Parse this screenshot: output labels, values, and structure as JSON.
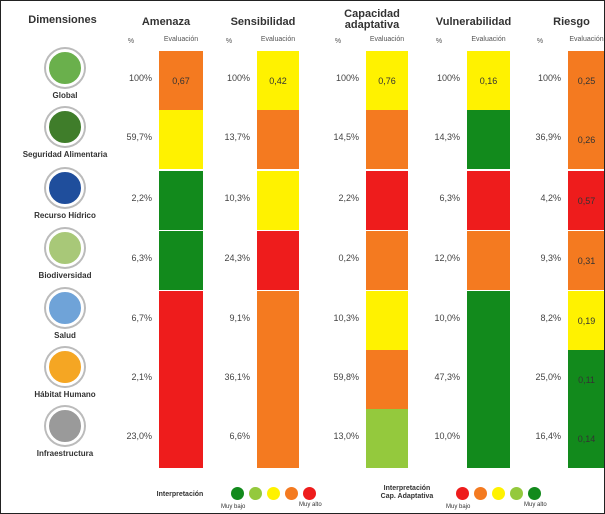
{
  "table": {
    "corner": "Dimensiones",
    "columns": [
      {
        "title": "Amenaza",
        "pct_label": "%",
        "eval_label": "Evaluación"
      },
      {
        "title": "Sensibilidad",
        "pct_label": "%",
        "eval_label": "Evaluación"
      },
      {
        "title": "Capacidad adaptativa",
        "pct_label": "%",
        "eval_label": "Evaluación"
      },
      {
        "title": "Vulnerabilidad",
        "pct_label": "%",
        "eval_label": "Evaluación"
      },
      {
        "title": "Riesgo",
        "pct_label": "%",
        "eval_label": "Evaluación"
      }
    ],
    "rows": [
      {
        "name": "Global",
        "icon_color": "#6ab04c",
        "cells": [
          {
            "pct": "100%",
            "color": "#f47a20",
            "eval": "0,67"
          },
          {
            "pct": "100%",
            "color": "#fff200",
            "eval": "0,42"
          },
          {
            "pct": "100%",
            "color": "#fff200",
            "eval": "0,76"
          },
          {
            "pct": "100%",
            "color": "#fff200",
            "eval": "0,16"
          },
          {
            "pct": "100%",
            "color": "#f47a20",
            "eval": "0,25"
          }
        ]
      },
      {
        "name": "Seguridad Alimentaria",
        "icon_color": "#3f7d2a",
        "cells": [
          {
            "pct": "59,7%",
            "color": "#fff200"
          },
          {
            "pct": "13,7%",
            "color": "#f47a20"
          },
          {
            "pct": "14,5%",
            "color": "#f47a20"
          },
          {
            "pct": "14,3%",
            "color": "#128a1c"
          },
          {
            "pct": "36,9%",
            "color": "#f47a20",
            "eval": "0,26"
          }
        ]
      },
      {
        "name": "Recurso Hídrico",
        "icon_color": "#1f4e9c",
        "cells": [
          {
            "pct": "2,2%",
            "color": "#128a1c"
          },
          {
            "pct": "10,3%",
            "color": "#fff200"
          },
          {
            "pct": "2,2%",
            "color": "#ee1c1c"
          },
          {
            "pct": "6,3%",
            "color": "#ee1c1c"
          },
          {
            "pct": "4,2%",
            "color": "#ee1c1c",
            "eval": "0,57"
          }
        ]
      },
      {
        "name": "Biodiversidad",
        "icon_color": "#a8c878",
        "cells": [
          {
            "pct": "6,3%",
            "color": "#128a1c"
          },
          {
            "pct": "24,3%",
            "color": "#ee1c1c"
          },
          {
            "pct": "0,2%",
            "color": "#f47a20"
          },
          {
            "pct": "12,0%",
            "color": "#f47a20"
          },
          {
            "pct": "9,3%",
            "color": "#f47a20",
            "eval": "0,31"
          }
        ]
      },
      {
        "name": "Salud",
        "icon_color": "#6fa3d8",
        "cells": [
          {
            "pct": "6,7%",
            "color": "#ee1c1c"
          },
          {
            "pct": "9,1%",
            "color": "#f47a20"
          },
          {
            "pct": "10,3%",
            "color": "#fff200"
          },
          {
            "pct": "10,0%",
            "color": "#128a1c"
          },
          {
            "pct": "8,2%",
            "color": "#fff200",
            "eval": "0,19"
          }
        ]
      },
      {
        "name": "Hábitat Humano",
        "icon_color": "#f5a623",
        "cells": [
          {
            "pct": "2,1%",
            "color": "#ee1c1c"
          },
          {
            "pct": "36,1%",
            "color": "#f47a20"
          },
          {
            "pct": "59,8%",
            "color": "#f47a20"
          },
          {
            "pct": "47,3%",
            "color": "#128a1c"
          },
          {
            "pct": "25,0%",
            "color": "#128a1c",
            "eval": "0,11"
          }
        ]
      },
      {
        "name": "Infraestructura",
        "icon_color": "#9a9a9a",
        "cells": [
          {
            "pct": "23,0%",
            "color": "#ee1c1c"
          },
          {
            "pct": "6,6%",
            "color": "#f47a20"
          },
          {
            "pct": "13,0%",
            "color": "#94c93d"
          },
          {
            "pct": "10,0%",
            "color": "#128a1c"
          },
          {
            "pct": "16,4%",
            "color": "#128a1c",
            "eval": "0,14"
          }
        ]
      }
    ]
  },
  "legends": [
    {
      "title": "Interpretación",
      "low": "Muy bajo",
      "high": "Muy alto",
      "colors": [
        "#128a1c",
        "#94c93d",
        "#fff200",
        "#f47a20",
        "#ee1c1c"
      ]
    },
    {
      "title": "Interpretación Cap. Adaptativa",
      "low": "Muy bajo",
      "high": "Muy alto",
      "colors": [
        "#ee1c1c",
        "#f47a20",
        "#fff200",
        "#94c93d",
        "#128a1c"
      ]
    }
  ]
}
